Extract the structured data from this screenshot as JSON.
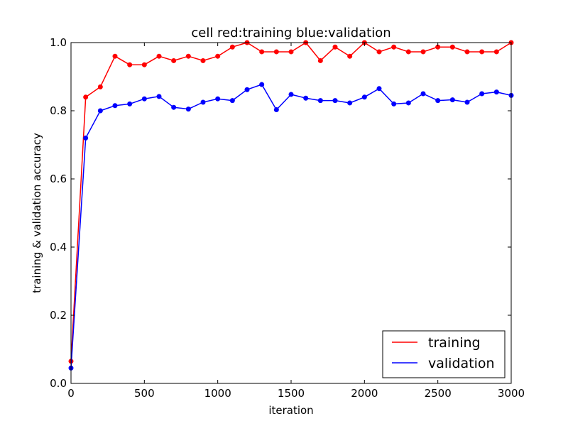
{
  "chart_data": {
    "type": "line",
    "title": "cell red:training blue:validation",
    "xlabel": "iteration",
    "ylabel": "training & validation accuracy",
    "xlim": [
      0,
      3000
    ],
    "ylim": [
      0.0,
      1.0
    ],
    "x_ticks": [
      0,
      500,
      1000,
      1500,
      2000,
      2500,
      3000
    ],
    "y_ticks": [
      "0.0",
      "0.2",
      "0.4",
      "0.6",
      "0.8",
      "1.0"
    ],
    "grid": false,
    "legend_position": "bottom-right",
    "x": [
      0,
      100,
      200,
      300,
      400,
      500,
      600,
      700,
      800,
      900,
      1000,
      1100,
      1200,
      1300,
      1400,
      1500,
      1600,
      1700,
      1800,
      1900,
      2000,
      2100,
      2200,
      2300,
      2400,
      2500,
      2600,
      2700,
      2800,
      2900,
      3000
    ],
    "series": [
      {
        "name": "training",
        "color": "#ff0000",
        "values": [
          0.065,
          0.84,
          0.87,
          0.96,
          0.935,
          0.935,
          0.96,
          0.947,
          0.96,
          0.947,
          0.96,
          0.987,
          1.0,
          0.973,
          0.973,
          0.973,
          1.0,
          0.947,
          0.987,
          0.96,
          1.0,
          0.973,
          0.987,
          0.973,
          0.973,
          0.987,
          0.987,
          0.973,
          0.973,
          0.973,
          1.0
        ]
      },
      {
        "name": "validation",
        "color": "#0000ff",
        "values": [
          0.045,
          0.72,
          0.8,
          0.815,
          0.82,
          0.835,
          0.842,
          0.81,
          0.805,
          0.825,
          0.835,
          0.83,
          0.862,
          0.877,
          0.803,
          0.848,
          0.837,
          0.83,
          0.83,
          0.823,
          0.84,
          0.865,
          0.82,
          0.823,
          0.85,
          0.83,
          0.832,
          0.825,
          0.85,
          0.855,
          0.845
        ]
      }
    ]
  }
}
